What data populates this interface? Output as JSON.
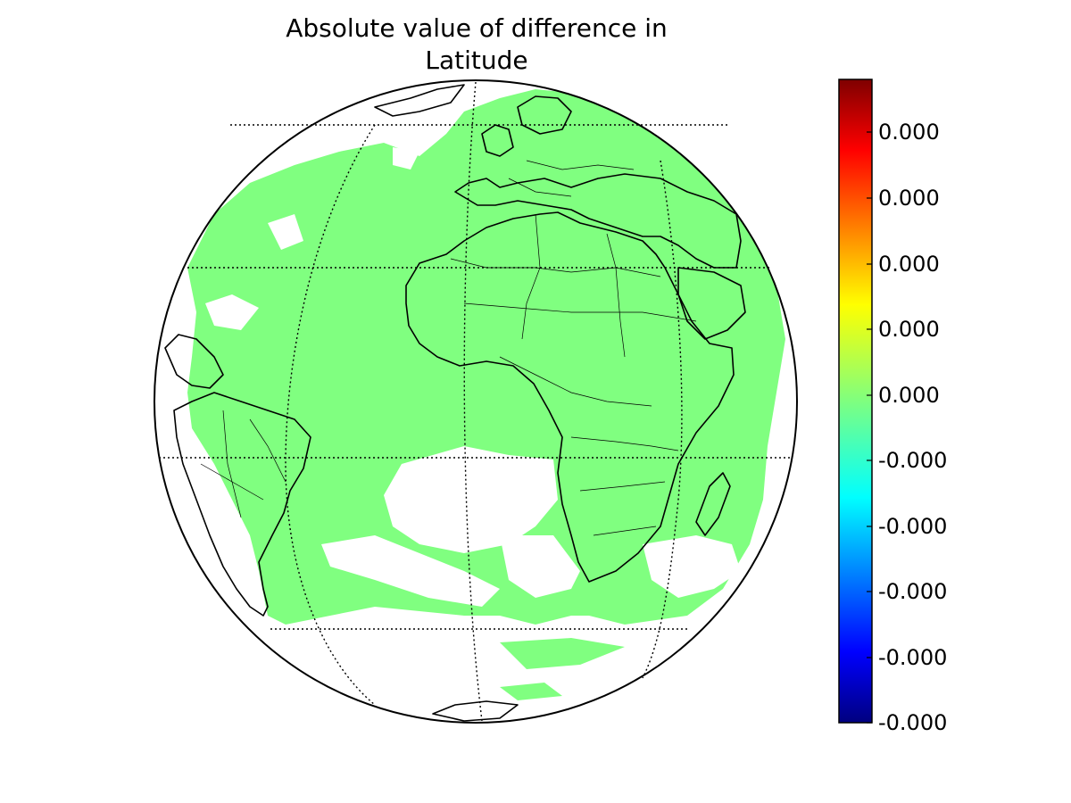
{
  "title_line1": "Absolute value of difference in",
  "title_line2": "Latitude",
  "colorbar": {
    "tick_labels": [
      "0.000",
      "0.000",
      "0.000",
      "0.000",
      "0.000",
      "-0.000",
      "-0.000",
      "-0.000",
      "-0.000",
      "-0.000"
    ],
    "colormap": "jet",
    "colors": [
      "#00007f",
      "#0000ff",
      "#0080ff",
      "#00ffff",
      "#7fff7f",
      "#ffff00",
      "#ff8000",
      "#ff0000",
      "#7f0000"
    ]
  },
  "map": {
    "projection": "orthographic",
    "ocean_color": "#ffffff",
    "field_color": "#80ff80",
    "coastline_color": "#000000",
    "graticule": "dotted",
    "regions": [
      "Europe",
      "Africa",
      "South America",
      "Atlantic Ocean",
      "Madagascar",
      "Antarctica"
    ]
  }
}
